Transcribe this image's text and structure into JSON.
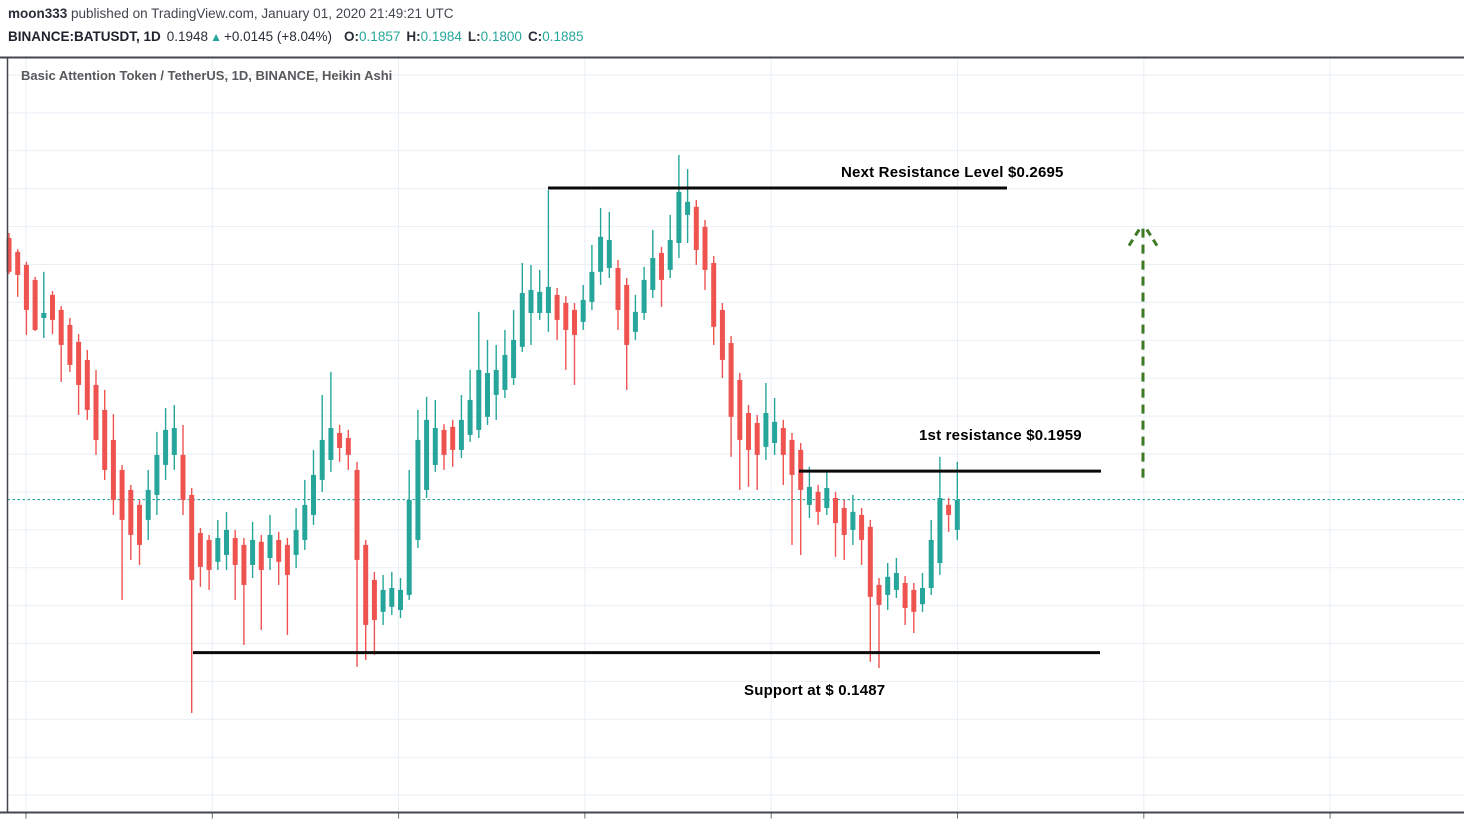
{
  "header": {
    "publisher": {
      "author": "moon333",
      "rest": " published on TradingView.com, January 01, 2020 21:49:21 UTC"
    },
    "symbol_line": {
      "symbol": "BINANCE:BATUSDT, 1D",
      "last": "0.1948",
      "up_arrow": "▲",
      "change": "+0.0145 (+8.04%)",
      "ohlc": [
        {
          "k": "O:",
          "v": "0.1857"
        },
        {
          "k": "H:",
          "v": "0.1984"
        },
        {
          "k": "L:",
          "v": "0.1800"
        },
        {
          "k": "C:",
          "v": "0.1885"
        }
      ]
    }
  },
  "chart": {
    "title": "Basic Attention Token / TetherUS, 1D, BINANCE, Heikin Ashi",
    "annotations": {
      "next_resistance": "Next Resistance Level $0.2695",
      "first_resistance": "1st resistance $0.1959",
      "support": "Support at $ 0.1487"
    }
  },
  "colors": {
    "up": "#26a69a",
    "down": "#ef5350",
    "level_line": "#0a0a0a",
    "arrow_green": "#3d7a23",
    "grid": "#e9eff5",
    "axis": "#42464e",
    "tick": "#6a6d78",
    "current_price_line": "#26a69a"
  },
  "chart_data": {
    "type": "candlestick",
    "style": "heikin-ashi",
    "symbol": "BINANCE:BATUSDT",
    "interval": "1D",
    "current_price": 0.1885,
    "levels": [
      {
        "id": "next_resistance",
        "price": 0.2695,
        "label": "Next Resistance Level $0.2695"
      },
      {
        "id": "first_resistance",
        "price": 0.1959,
        "label": "1st resistance $0.1959"
      },
      {
        "id": "support",
        "price": 0.1487,
        "label": "Support at $ 0.1487"
      }
    ],
    "up_arrow_annotation": {
      "price_from": 0.1942,
      "price_to": 0.2605
    },
    "candles": [
      [
        0.2565,
        0.2578,
        0.2471,
        0.2477
      ],
      [
        0.2529,
        0.2536,
        0.2412,
        0.2469
      ],
      [
        0.2495,
        0.2503,
        0.2313,
        0.2378
      ],
      [
        0.2456,
        0.2464,
        0.2323,
        0.2326
      ],
      [
        0.2357,
        0.2477,
        0.2305,
        0.237
      ],
      [
        0.2417,
        0.2427,
        0.2315,
        0.2352
      ],
      [
        0.2378,
        0.2388,
        0.2191,
        0.2287
      ],
      [
        0.2339,
        0.2357,
        0.2217,
        0.2235
      ],
      [
        0.2295,
        0.2315,
        0.2105,
        0.2183
      ],
      [
        0.2248,
        0.2274,
        0.2092,
        0.2118
      ],
      [
        0.2183,
        0.2222,
        0.2001,
        0.204
      ],
      [
        0.2118,
        0.217,
        0.1936,
        0.1962
      ],
      [
        0.204,
        0.2107,
        0.1845,
        0.1884
      ],
      [
        0.1962,
        0.1975,
        0.1624,
        0.1832
      ],
      [
        0.191,
        0.1923,
        0.1728,
        0.1793
      ],
      [
        0.1871,
        0.1884,
        0.1715,
        0.1767
      ],
      [
        0.1832,
        0.1962,
        0.178,
        0.191
      ],
      [
        0.1897,
        0.2061,
        0.1845,
        0.2001
      ],
      [
        0.1975,
        0.2123,
        0.1936,
        0.2066
      ],
      [
        0.2001,
        0.2131,
        0.1962,
        0.2071
      ],
      [
        0.2001,
        0.2079,
        0.1845,
        0.1884
      ],
      [
        0.1897,
        0.1915,
        0.133,
        0.1676
      ],
      [
        0.1798,
        0.1811,
        0.1658,
        0.171
      ],
      [
        0.178,
        0.1793,
        0.165,
        0.1702
      ],
      [
        0.1723,
        0.1832,
        0.1702,
        0.1785
      ],
      [
        0.1741,
        0.1853,
        0.1702,
        0.1806
      ],
      [
        0.1785,
        0.1806,
        0.1624,
        0.1715
      ],
      [
        0.1767,
        0.1785,
        0.1507,
        0.1663
      ],
      [
        0.1715,
        0.1827,
        0.1681,
        0.178
      ],
      [
        0.1775,
        0.1793,
        0.1546,
        0.1702
      ],
      [
        0.1733,
        0.1845,
        0.1702,
        0.1793
      ],
      [
        0.178,
        0.1801,
        0.1663,
        0.1723
      ],
      [
        0.1767,
        0.1785,
        0.1533,
        0.1689
      ],
      [
        0.1741,
        0.1863,
        0.1707,
        0.1806
      ],
      [
        0.178,
        0.1936,
        0.1754,
        0.1871
      ],
      [
        0.1845,
        0.2014,
        0.1819,
        0.1949
      ],
      [
        0.1936,
        0.2157,
        0.1905,
        0.204
      ],
      [
        0.1988,
        0.2217,
        0.1957,
        0.2071
      ],
      [
        0.2058,
        0.2079,
        0.1983,
        0.2019
      ],
      [
        0.2045,
        0.2066,
        0.1962,
        0.2001
      ],
      [
        0.1962,
        0.1983,
        0.145,
        0.1728
      ],
      [
        0.1767,
        0.178,
        0.1468,
        0.1559
      ],
      [
        0.1676,
        0.1697,
        0.1481,
        0.1572
      ],
      [
        0.1593,
        0.1689,
        0.1559,
        0.165
      ],
      [
        0.1606,
        0.1697,
        0.1585,
        0.1655
      ],
      [
        0.1598,
        0.1681,
        0.1577,
        0.165
      ],
      [
        0.1637,
        0.1962,
        0.1624,
        0.1884
      ],
      [
        0.178,
        0.2118,
        0.1759,
        0.204
      ],
      [
        0.191,
        0.2152,
        0.1889,
        0.2092
      ],
      [
        0.1975,
        0.2144,
        0.1957,
        0.2071
      ],
      [
        0.2066,
        0.2081,
        0.1962,
        0.2001
      ],
      [
        0.2074,
        0.2092,
        0.197,
        0.2014
      ],
      [
        0.2014,
        0.2157,
        0.1993,
        0.2092
      ],
      [
        0.2053,
        0.2222,
        0.2035,
        0.2144
      ],
      [
        0.2066,
        0.2373,
        0.2045,
        0.2222
      ],
      [
        0.21,
        0.23,
        0.2079,
        0.2214
      ],
      [
        0.2157,
        0.2287,
        0.2092,
        0.2222
      ],
      [
        0.217,
        0.2326,
        0.2149,
        0.2261
      ],
      [
        0.2201,
        0.2378,
        0.2183,
        0.23
      ],
      [
        0.2282,
        0.25,
        0.2269,
        0.2422
      ],
      [
        0.237,
        0.2495,
        0.2287,
        0.243
      ],
      [
        0.237,
        0.2482,
        0.2352,
        0.2425
      ],
      [
        0.237,
        0.269,
        0.2321,
        0.2438
      ],
      [
        0.2417,
        0.2435,
        0.23,
        0.2352
      ],
      [
        0.2396,
        0.2414,
        0.2222,
        0.2326
      ],
      [
        0.2378,
        0.2396,
        0.2183,
        0.2313
      ],
      [
        0.2347,
        0.2443,
        0.2326,
        0.2404
      ],
      [
        0.2399,
        0.2547,
        0.2378,
        0.2477
      ],
      [
        0.2477,
        0.2643,
        0.2443,
        0.2568
      ],
      [
        0.2487,
        0.2633,
        0.2461,
        0.256
      ],
      [
        0.2487,
        0.2508,
        0.2326,
        0.2378
      ],
      [
        0.2443,
        0.2461,
        0.217,
        0.2287
      ],
      [
        0.2321,
        0.2417,
        0.23,
        0.2373
      ],
      [
        0.237,
        0.249,
        0.2352,
        0.2456
      ],
      [
        0.243,
        0.2586,
        0.2409,
        0.2513
      ],
      [
        0.2526,
        0.2542,
        0.2386,
        0.2456
      ],
      [
        0.2482,
        0.2625,
        0.2461,
        0.256
      ],
      [
        0.2552,
        0.2781,
        0.2513,
        0.2685
      ],
      [
        0.2625,
        0.2744,
        0.2552,
        0.2659
      ],
      [
        0.2646,
        0.2664,
        0.2495,
        0.2534
      ],
      [
        0.2594,
        0.2612,
        0.243,
        0.2482
      ],
      [
        0.25,
        0.2518,
        0.2287,
        0.2334
      ],
      [
        0.2378,
        0.2396,
        0.2201,
        0.2248
      ],
      [
        0.2292,
        0.231,
        0.1996,
        0.21
      ],
      [
        0.2196,
        0.2214,
        0.191,
        0.204
      ],
      [
        0.211,
        0.2131,
        0.1918,
        0.2014
      ],
      [
        0.2084,
        0.2105,
        0.191,
        0.2001
      ],
      [
        0.2022,
        0.2188,
        0.1988,
        0.211
      ],
      [
        0.2032,
        0.2149,
        0.2001,
        0.2087
      ],
      [
        0.2071,
        0.2092,
        0.1923,
        0.2001
      ],
      [
        0.204,
        0.2058,
        0.1767,
        0.1949
      ],
      [
        0.2014,
        0.2032,
        0.1741,
        0.191
      ],
      [
        0.1871,
        0.197,
        0.1837,
        0.1918
      ],
      [
        0.1905,
        0.1923,
        0.1819,
        0.1853
      ],
      [
        0.1863,
        0.1962,
        0.1845,
        0.1915
      ],
      [
        0.1889,
        0.1905,
        0.1736,
        0.1824
      ],
      [
        0.1863,
        0.1884,
        0.1728,
        0.1793
      ],
      [
        0.1806,
        0.1897,
        0.1767,
        0.1853
      ],
      [
        0.1845,
        0.1863,
        0.1715,
        0.178
      ],
      [
        0.1814,
        0.1832,
        0.1463,
        0.1632
      ],
      [
        0.1663,
        0.1681,
        0.1447,
        0.1611
      ],
      [
        0.1637,
        0.172,
        0.1598,
        0.1684
      ],
      [
        0.165,
        0.1733,
        0.1629,
        0.1694
      ],
      [
        0.1668,
        0.1686,
        0.1559,
        0.1603
      ],
      [
        0.165,
        0.1668,
        0.1538,
        0.1593
      ],
      [
        0.1613,
        0.1694,
        0.1593,
        0.1655
      ],
      [
        0.1655,
        0.1832,
        0.1637,
        0.178
      ],
      [
        0.172,
        0.1996,
        0.1689,
        0.1889
      ],
      [
        0.1871,
        0.1889,
        0.1801,
        0.1845
      ],
      [
        0.1806,
        0.1983,
        0.178,
        0.1884
      ]
    ]
  }
}
